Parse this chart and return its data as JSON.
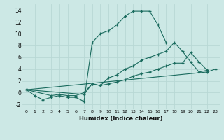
{
  "xlabel": "Humidex (Indice chaleur)",
  "bg_color": "#cce8e5",
  "grid_color": "#b8d8d5",
  "line_color": "#1a6b5e",
  "xlim": [
    -0.5,
    23.5
  ],
  "ylim": [
    -2.8,
    15.0
  ],
  "xticks": [
    0,
    1,
    2,
    3,
    4,
    5,
    6,
    7,
    8,
    9,
    10,
    11,
    12,
    13,
    14,
    15,
    16,
    17,
    18,
    19,
    20,
    21,
    22,
    23
  ],
  "yticks": [
    -2,
    0,
    2,
    4,
    6,
    8,
    10,
    12,
    14
  ],
  "series1_x": [
    0,
    1,
    2,
    3,
    4,
    5,
    6,
    7,
    8,
    9,
    10,
    11,
    12,
    13,
    14,
    15,
    16,
    17
  ],
  "series1_y": [
    0.5,
    -0.5,
    -1.2,
    -0.8,
    -0.5,
    -0.8,
    -0.8,
    -1.5,
    8.5,
    10.0,
    10.5,
    11.5,
    13.0,
    13.8,
    13.8,
    13.8,
    11.5,
    8.5
  ],
  "series2_x": [
    0,
    3,
    4,
    5,
    6,
    7,
    8,
    9,
    10,
    11,
    12,
    13,
    14,
    15,
    16,
    17,
    18,
    19,
    20,
    21,
    22
  ],
  "series2_y": [
    0.5,
    -0.5,
    -0.3,
    -0.5,
    -0.5,
    0.0,
    1.5,
    1.2,
    2.5,
    3.0,
    4.0,
    4.5,
    5.5,
    6.0,
    6.5,
    7.0,
    8.5,
    7.0,
    5.2,
    3.5,
    3.8
  ],
  "series3_x": [
    0,
    7,
    8,
    9,
    10,
    11,
    12,
    13,
    14,
    15,
    16,
    17,
    18,
    19,
    20,
    21,
    22
  ],
  "series3_y": [
    0.5,
    -0.3,
    1.5,
    1.2,
    1.5,
    1.8,
    2.2,
    2.8,
    3.2,
    3.5,
    4.0,
    4.5,
    5.0,
    5.0,
    6.8,
    5.2,
    3.8
  ],
  "series4_x": [
    0,
    22,
    23
  ],
  "series4_y": [
    0.5,
    3.5,
    4.0
  ]
}
